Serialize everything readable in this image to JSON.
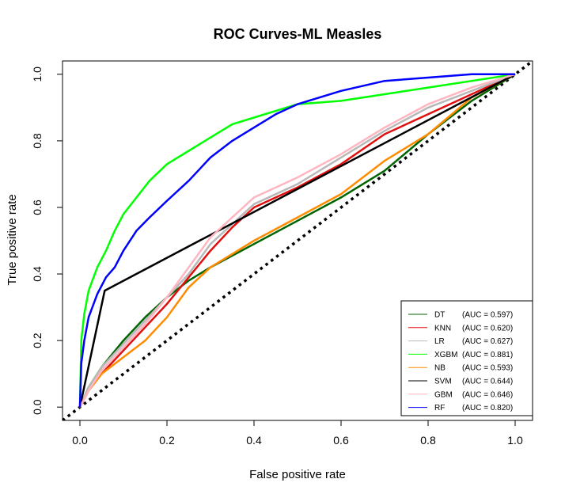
{
  "chart_data": {
    "type": "line",
    "title": "ROC Curves-ML Measles",
    "xlabel": "False positive rate",
    "ylabel": "True positive rate",
    "xlim": [
      -0.04,
      1.04
    ],
    "ylim": [
      -0.04,
      1.04
    ],
    "xticks": [
      0.0,
      0.2,
      0.4,
      0.6,
      0.8,
      1.0
    ],
    "yticks": [
      0.0,
      0.2,
      0.4,
      0.6,
      0.8,
      1.0
    ],
    "xtick_labels": [
      "0.0",
      "0.2",
      "0.4",
      "0.6",
      "0.8",
      "1.0"
    ],
    "ytick_labels": [
      "0.0",
      "0.2",
      "0.4",
      "0.6",
      "0.8",
      "1.0"
    ],
    "grid": false,
    "legend_position": "bottom-right",
    "reference_line": {
      "style": "dotted",
      "color": "#000000",
      "points": [
        [
          -0.04,
          -0.04
        ],
        [
          1.04,
          1.04
        ]
      ]
    },
    "series": [
      {
        "name": "DT",
        "auc": "(AUC = 0.597)",
        "color": "#006400",
        "points": [
          [
            0,
            0
          ],
          [
            0.02,
            0.06
          ],
          [
            0.05,
            0.12
          ],
          [
            0.1,
            0.2
          ],
          [
            0.15,
            0.27
          ],
          [
            0.2,
            0.33
          ],
          [
            0.25,
            0.38
          ],
          [
            0.3,
            0.42
          ],
          [
            0.4,
            0.49
          ],
          [
            0.5,
            0.56
          ],
          [
            0.6,
            0.63
          ],
          [
            0.7,
            0.71
          ],
          [
            0.8,
            0.82
          ],
          [
            0.9,
            0.92
          ],
          [
            1,
            1
          ]
        ]
      },
      {
        "name": "KNN",
        "auc": "(AUC = 0.620)",
        "color": "#e01010",
        "points": [
          [
            0,
            0
          ],
          [
            0.02,
            0.05
          ],
          [
            0.05,
            0.1
          ],
          [
            0.1,
            0.17
          ],
          [
            0.15,
            0.24
          ],
          [
            0.2,
            0.31
          ],
          [
            0.25,
            0.39
          ],
          [
            0.3,
            0.47
          ],
          [
            0.35,
            0.54
          ],
          [
            0.4,
            0.6
          ],
          [
            0.5,
            0.66
          ],
          [
            0.6,
            0.73
          ],
          [
            0.7,
            0.82
          ],
          [
            0.8,
            0.88
          ],
          [
            0.9,
            0.94
          ],
          [
            1,
            1
          ]
        ]
      },
      {
        "name": "LR",
        "auc": "(AUC = 0.627)",
        "color": "#b8b8b8",
        "points": [
          [
            0,
            0
          ],
          [
            0.02,
            0.06
          ],
          [
            0.05,
            0.12
          ],
          [
            0.1,
            0.19
          ],
          [
            0.15,
            0.26
          ],
          [
            0.2,
            0.33
          ],
          [
            0.25,
            0.4
          ],
          [
            0.3,
            0.49
          ],
          [
            0.35,
            0.55
          ],
          [
            0.4,
            0.61
          ],
          [
            0.5,
            0.67
          ],
          [
            0.6,
            0.75
          ],
          [
            0.7,
            0.83
          ],
          [
            0.8,
            0.9
          ],
          [
            0.9,
            0.95
          ],
          [
            1,
            1
          ]
        ]
      },
      {
        "name": "XGBM",
        "auc": "(AUC = 0.881)",
        "color": "#00ff00",
        "points": [
          [
            0,
            0
          ],
          [
            0.003,
            0.2
          ],
          [
            0.01,
            0.28
          ],
          [
            0.02,
            0.35
          ],
          [
            0.04,
            0.42
          ],
          [
            0.06,
            0.47
          ],
          [
            0.08,
            0.53
          ],
          [
            0.1,
            0.58
          ],
          [
            0.13,
            0.63
          ],
          [
            0.16,
            0.68
          ],
          [
            0.2,
            0.73
          ],
          [
            0.25,
            0.77
          ],
          [
            0.3,
            0.81
          ],
          [
            0.35,
            0.85
          ],
          [
            0.4,
            0.87
          ],
          [
            0.45,
            0.89
          ],
          [
            0.5,
            0.91
          ],
          [
            0.6,
            0.92
          ],
          [
            0.7,
            0.94
          ],
          [
            0.8,
            0.96
          ],
          [
            0.9,
            0.98
          ],
          [
            1,
            1
          ]
        ]
      },
      {
        "name": "NB",
        "auc": "(AUC = 0.593)",
        "color": "#ff8c00",
        "points": [
          [
            0,
            0
          ],
          [
            0.02,
            0.05
          ],
          [
            0.05,
            0.1
          ],
          [
            0.1,
            0.15
          ],
          [
            0.15,
            0.2
          ],
          [
            0.2,
            0.27
          ],
          [
            0.25,
            0.36
          ],
          [
            0.3,
            0.42
          ],
          [
            0.35,
            0.46
          ],
          [
            0.4,
            0.5
          ],
          [
            0.5,
            0.57
          ],
          [
            0.6,
            0.64
          ],
          [
            0.7,
            0.74
          ],
          [
            0.8,
            0.82
          ],
          [
            0.9,
            0.93
          ],
          [
            1,
            1
          ]
        ]
      },
      {
        "name": "SVM",
        "auc": "(AUC = 0.644)",
        "color": "#000000",
        "points": [
          [
            0,
            0
          ],
          [
            0.057,
            0.35
          ],
          [
            1,
            1
          ]
        ]
      },
      {
        "name": "GBM",
        "auc": "(AUC = 0.646)",
        "color": "#ffb6c1",
        "points": [
          [
            0,
            0
          ],
          [
            0.02,
            0.05
          ],
          [
            0.05,
            0.11
          ],
          [
            0.1,
            0.18
          ],
          [
            0.15,
            0.25
          ],
          [
            0.2,
            0.33
          ],
          [
            0.25,
            0.42
          ],
          [
            0.3,
            0.51
          ],
          [
            0.35,
            0.57
          ],
          [
            0.4,
            0.63
          ],
          [
            0.5,
            0.69
          ],
          [
            0.6,
            0.76
          ],
          [
            0.7,
            0.84
          ],
          [
            0.8,
            0.91
          ],
          [
            0.9,
            0.96
          ],
          [
            1,
            1
          ]
        ]
      },
      {
        "name": "RF",
        "auc": "(AUC = 0.820)",
        "color": "#0000ff",
        "points": [
          [
            0,
            0
          ],
          [
            0.003,
            0.13
          ],
          [
            0.01,
            0.2
          ],
          [
            0.02,
            0.27
          ],
          [
            0.04,
            0.34
          ],
          [
            0.06,
            0.39
          ],
          [
            0.08,
            0.42
          ],
          [
            0.1,
            0.47
          ],
          [
            0.13,
            0.53
          ],
          [
            0.16,
            0.57
          ],
          [
            0.2,
            0.62
          ],
          [
            0.25,
            0.68
          ],
          [
            0.3,
            0.75
          ],
          [
            0.35,
            0.8
          ],
          [
            0.4,
            0.84
          ],
          [
            0.45,
            0.88
          ],
          [
            0.5,
            0.91
          ],
          [
            0.6,
            0.95
          ],
          [
            0.7,
            0.98
          ],
          [
            0.8,
            0.99
          ],
          [
            0.9,
            1
          ],
          [
            1,
            1
          ]
        ]
      }
    ]
  }
}
